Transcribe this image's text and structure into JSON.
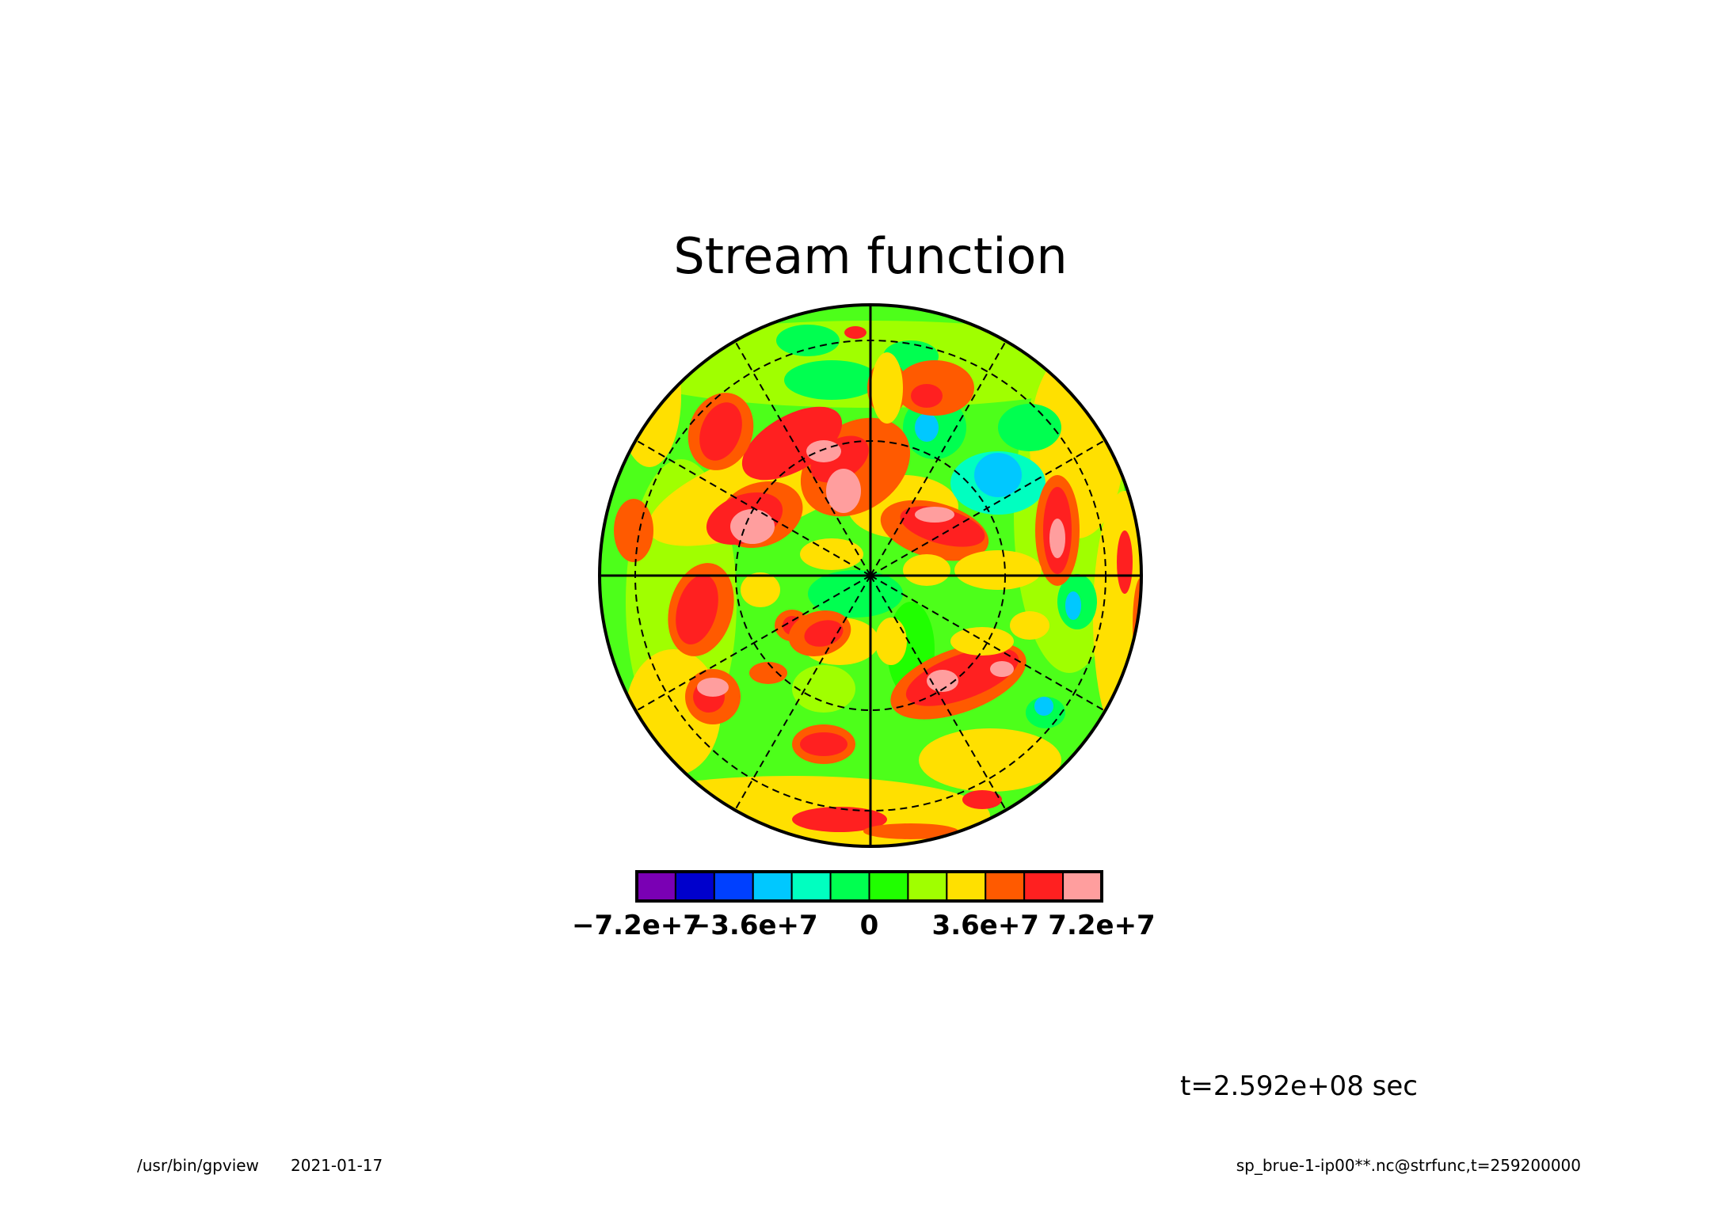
{
  "chart_data": {
    "type": "heatmap",
    "projection": "polar-stereographic",
    "title": "Stream function",
    "grid": true,
    "colorbar": {
      "placement": "bottom",
      "colors": [
        "#7a00b4",
        "#0000cc",
        "#0040ff",
        "#00c8ff",
        "#00ffc0",
        "#00ff50",
        "#20ff00",
        "#a0ff00",
        "#ffe000",
        "#ff5a00",
        "#ff2020",
        "#ff9e9e"
      ],
      "tick_labels": [
        "-7.2e+7",
        "-3.6e+7",
        "0",
        "3.6e+7",
        "7.2e+7"
      ],
      "tick_values": [
        -72000000,
        -36000000,
        0,
        36000000,
        72000000
      ],
      "range": [
        -72000000,
        72000000
      ]
    },
    "time_label": "t=2.592e+08 sec"
  },
  "footer": {
    "program": "/usr/bin/gpview",
    "date": "2021-01-17",
    "source": "sp_brue-1-ip00**.nc@strfunc,t=259200000"
  }
}
